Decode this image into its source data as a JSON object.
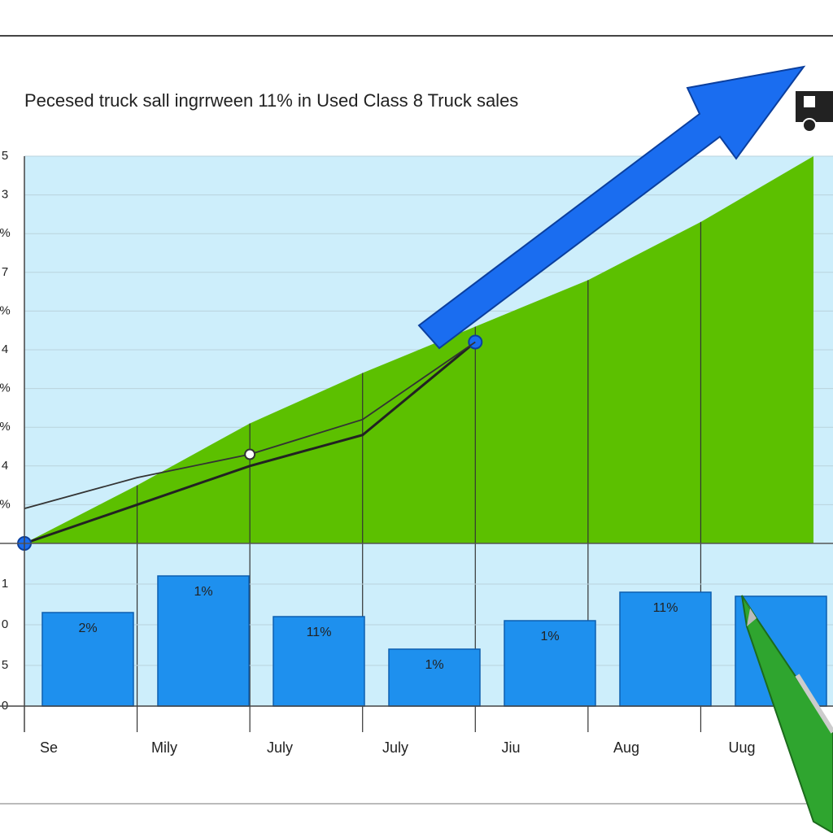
{
  "chart_data": [
    {
      "type": "area",
      "title": "Pecesed truck sall ingrrween  11% in Used Class 8 Truck sales",
      "x": [
        0,
        1,
        2,
        3,
        4,
        5,
        6,
        7
      ],
      "xlim": [
        0,
        7
      ],
      "ylim": [
        0,
        10
      ],
      "yticks": [
        {
          "value": 1,
          "label": "%"
        },
        {
          "value": 2,
          "label": "4"
        },
        {
          "value": 3,
          "label": "%"
        },
        {
          "value": 4,
          "label": "%"
        },
        {
          "value": 5,
          "label": "4"
        },
        {
          "value": 6,
          "label": "%"
        },
        {
          "value": 7,
          "label": "7"
        },
        {
          "value": 8,
          "label": "%"
        },
        {
          "value": 9,
          "label": "3"
        },
        {
          "value": 10,
          "label": "5"
        }
      ],
      "grid": true,
      "series": [
        {
          "color": "#5cc000",
          "values": [
            0,
            1.5,
            3.1,
            4.4,
            5.6,
            6.8,
            8.3,
            10
          ]
        },
        {
          "color": "#222222",
          "values": [
            0,
            1.0,
            2.0,
            2.8,
            5.2,
            null,
            null,
            null
          ]
        },
        {
          "color": "#333333",
          "values": [
            0.9,
            1.7,
            2.3,
            3.2,
            5.2,
            null,
            null,
            null
          ]
        }
      ]
    },
    {
      "type": "bar",
      "categories": [
        "Se",
        "Mily",
        "July",
        "July",
        "Jiu",
        "Aug",
        "Uug"
      ],
      "values": [
        2.3,
        3.2,
        2.2,
        1.4,
        2.1,
        2.8,
        2.7
      ],
      "annotations": [
        "2%",
        "1%",
        "11%",
        "1%",
        "1%",
        "11%"
      ],
      "color": "#1e90ee",
      "ylim": [
        0,
        3.2
      ],
      "yticks": [
        0,
        {
          "value": 1,
          "label": "5"
        },
        {
          "value": 2,
          "label": "0"
        },
        {
          "value": 3,
          "label": "1"
        }
      ],
      "grid": true
    }
  ]
}
